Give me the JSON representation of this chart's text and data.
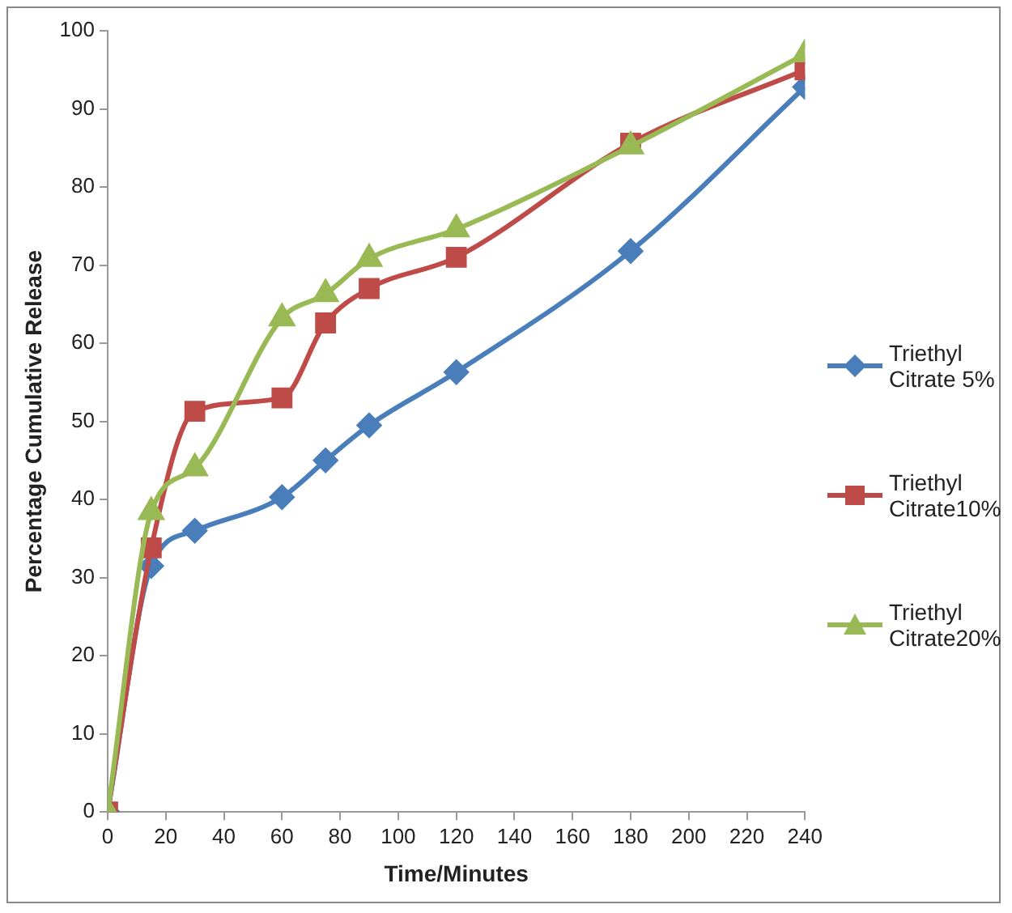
{
  "chart_data": {
    "type": "line",
    "xlabel": "Time/Minutes",
    "ylabel": "Percentage Cumulative Release",
    "x": [
      0,
      15,
      30,
      60,
      75,
      90,
      120,
      180,
      240
    ],
    "xlim": [
      0,
      240
    ],
    "xticks": [
      0,
      20,
      40,
      60,
      80,
      100,
      120,
      140,
      160,
      180,
      200,
      220,
      240
    ],
    "ylim": [
      0,
      100
    ],
    "yticks": [
      0,
      10,
      20,
      30,
      40,
      50,
      60,
      70,
      80,
      90,
      100
    ],
    "grid": false,
    "legend": "right",
    "series": [
      {
        "name": "Triethyl Citrate 5%",
        "color": "#4a7ebb",
        "marker": "diamond",
        "values": [
          0,
          31.5,
          36,
          40.3,
          45,
          49.5,
          56.3,
          71.8,
          92.8
        ]
      },
      {
        "name": "Triethyl Citrate10%",
        "color": "#be4b48",
        "marker": "square",
        "values": [
          0,
          33.8,
          51.3,
          53,
          62.6,
          67,
          71,
          85.6,
          95
        ]
      },
      {
        "name": "Triethyl Citrate20%",
        "color": "#98b954",
        "marker": "triangle",
        "values": [
          0,
          38.4,
          44,
          63.2,
          66.3,
          70.8,
          74.6,
          85.2,
          97
        ]
      }
    ]
  }
}
